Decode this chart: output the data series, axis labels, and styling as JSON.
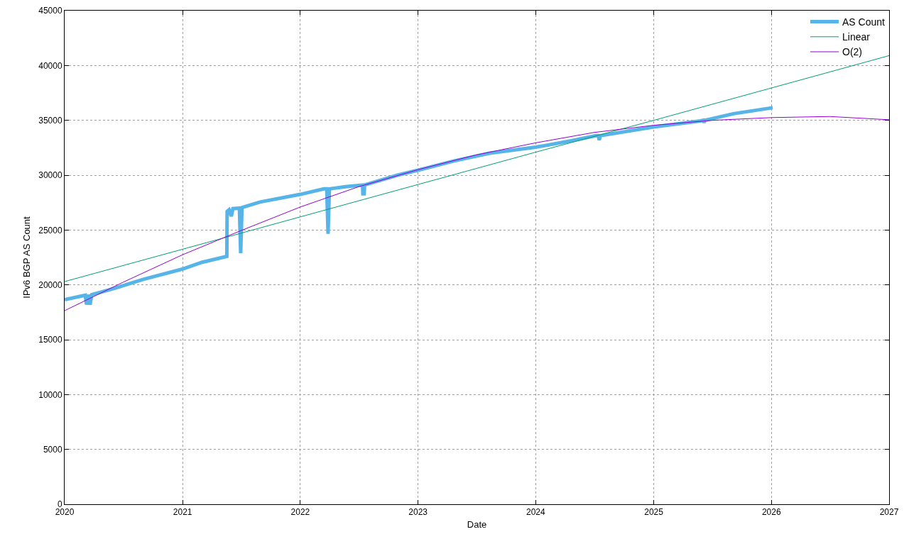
{
  "chart_data": {
    "type": "line",
    "xlabel": "Date",
    "ylabel": "IPv6 BGP AS Count",
    "xlim": [
      "2020",
      "2027"
    ],
    "xticks": [
      "2020",
      "2021",
      "2022",
      "2023",
      "2024",
      "2025",
      "2026",
      "2027"
    ],
    "ylim": [
      0,
      45000
    ],
    "yticks": [
      0,
      5000,
      10000,
      15000,
      20000,
      25000,
      30000,
      35000,
      40000,
      45000
    ],
    "grid": true,
    "legend": "top right",
    "marker": "none",
    "line_style": "solid",
    "series": [
      {
        "name": "AS Count",
        "color": "#56b4e9",
        "x": [
          "2020-01-01",
          "2020-03-05",
          "2020-03-09",
          "2020-03-14",
          "2020-03-20",
          "2020-03-25",
          "2020-06-05",
          "2020-09-01",
          "2021-01-01",
          "2021-03-01",
          "2021-05-18",
          "2021-05-19",
          "2021-05-25",
          "2021-06-01",
          "2021-06-06",
          "2021-06-26",
          "2021-06-30",
          "2021-07-04",
          "2021-08-29",
          "2022-01-01",
          "2022-03-15",
          "2022-03-24",
          "2022-03-28",
          "2022-04-01",
          "2022-05-21",
          "2022-07-13",
          "2022-07-14",
          "2022-07-18",
          "2022-07-19",
          "2022-10-29",
          "2023-01-01",
          "2023-04-23",
          "2023-08-11",
          "2024-01-01",
          "2024-04-23",
          "2024-07-06",
          "2024-07-13",
          "2024-07-16",
          "2024-07-19",
          "2025-01-01",
          "2025-05-26",
          "2025-06-03",
          "2025-06-06",
          "2025-06-09",
          "2025-09-05",
          "2026-01-05"
        ],
        "values": [
          18650,
          19050,
          18200,
          19100,
          18200,
          19100,
          19700,
          20500,
          21450,
          22050,
          22600,
          26700,
          26850,
          26250,
          26950,
          27000,
          22900,
          27050,
          27550,
          28250,
          28750,
          28750,
          24650,
          28750,
          28950,
          29100,
          28300,
          28300,
          29100,
          30000,
          30450,
          31300,
          32000,
          32550,
          33150,
          33600,
          33600,
          33200,
          33600,
          34400,
          34950,
          35000,
          34800,
          35000,
          35600,
          36150
        ]
      },
      {
        "name": "Linear",
        "color": "#009e73",
        "x": [
          "2020-01-01",
          "2021-01-01",
          "2022-01-01",
          "2023-01-01",
          "2024-01-01",
          "2025-01-01",
          "2026-01-01",
          "2027-01-01"
        ],
        "values": [
          20300,
          23250,
          26200,
          29150,
          32100,
          35000,
          37950,
          40900
        ]
      },
      {
        "name": "O(2)",
        "color": "#9400d3",
        "x": [
          "2020-01-01",
          "2020-07-01",
          "2021-01-01",
          "2021-07-01",
          "2022-01-01",
          "2022-07-01",
          "2023-01-01",
          "2023-07-01",
          "2024-01-01",
          "2024-07-01",
          "2025-01-01",
          "2025-07-01",
          "2026-01-01",
          "2026-07-01",
          "2027-01-01"
        ],
        "values": [
          17650,
          20250,
          22750,
          24950,
          27100,
          28950,
          30500,
          31850,
          32950,
          33900,
          34550,
          35000,
          35250,
          35350,
          35050
        ]
      }
    ]
  }
}
